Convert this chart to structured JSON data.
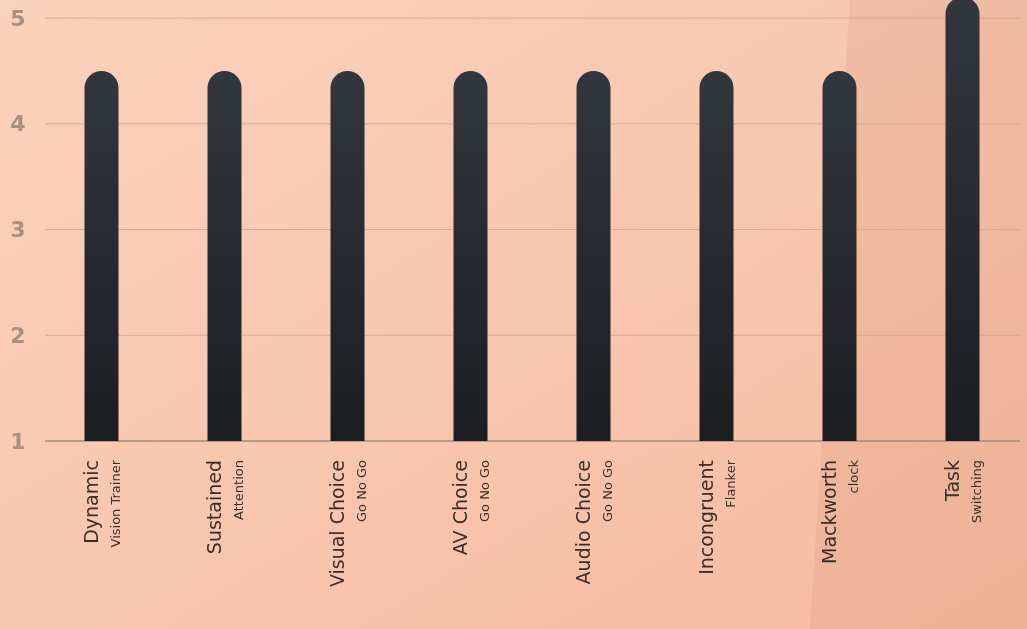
{
  "chart_data": {
    "type": "bar",
    "categories": [
      "Dynamic\nVision Trainer",
      "Sustained\nAttention",
      "Visual Choice\nGo No Go",
      "AV Choice\nGo No Go",
      "Audio Choice\nGo No Go",
      "Incongruent\nFlanker",
      "Mackworth\nclock",
      "Task\nSwitching"
    ],
    "values": [
      4.5,
      4.5,
      4.5,
      4.5,
      4.5,
      4.5,
      4.5,
      5.2
    ],
    "color": "#2a2e33",
    "ylim": [
      1,
      5.2
    ],
    "yticks": [
      1,
      2,
      3,
      4,
      5
    ],
    "grid": "y"
  }
}
